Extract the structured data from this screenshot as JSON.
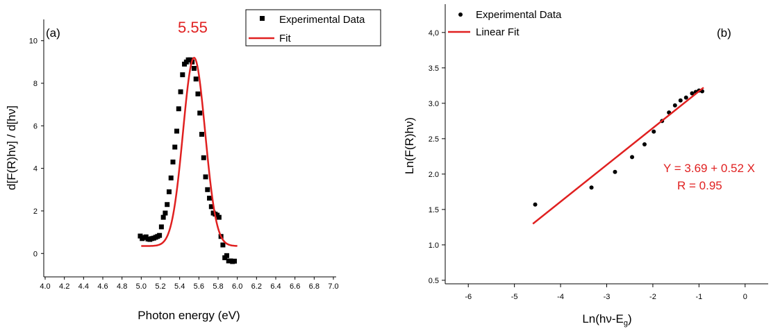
{
  "colors": {
    "fit": "#e02020",
    "data": "#000000",
    "axis": "#000000"
  },
  "chart_data": [
    {
      "type": "scatter",
      "panel_label": "(a)",
      "xlabel": "Photon energy (eV)",
      "ylabel": "d[F(R)hν] / d[hν]",
      "xlim": [
        4.0,
        7.0
      ],
      "ylim": [
        -1.1,
        11.0
      ],
      "x_ticks": [
        "4.0",
        "4.2",
        "4.4",
        "4.6",
        "4.8",
        "5.0",
        "5.2",
        "5.4",
        "5.6",
        "5.8",
        "6.0",
        "6.2",
        "6.4",
        "6.6",
        "6.8",
        "7.0"
      ],
      "y_ticks": [
        "0",
        "2",
        "4",
        "6",
        "8",
        "10"
      ],
      "annotation": "5.55",
      "legend": {
        "position": "top-right",
        "entries": [
          "Experimental Data",
          "Fit"
        ]
      },
      "series": [
        {
          "name": "Experimental Data",
          "kind": "scatter",
          "marker": "square",
          "x": [
            4.99,
            5.01,
            5.03,
            5.05,
            5.07,
            5.09,
            5.11,
            5.13,
            5.15,
            5.17,
            5.19,
            5.21,
            5.23,
            5.25,
            5.27,
            5.29,
            5.31,
            5.33,
            5.35,
            5.37,
            5.39,
            5.41,
            5.43,
            5.45,
            5.47,
            5.49,
            5.51,
            5.53,
            5.55,
            5.57,
            5.59,
            5.61,
            5.63,
            5.65,
            5.67,
            5.69,
            5.71,
            5.73,
            5.75,
            5.77,
            5.79,
            5.81,
            5.83,
            5.85,
            5.87,
            5.89,
            5.91,
            5.93,
            5.95,
            5.97
          ],
          "y": [
            0.82,
            0.7,
            0.75,
            0.78,
            0.68,
            0.66,
            0.7,
            0.72,
            0.76,
            0.8,
            0.85,
            1.25,
            1.7,
            1.9,
            2.3,
            2.9,
            3.55,
            4.3,
            5.0,
            5.75,
            6.8,
            7.6,
            8.4,
            8.9,
            9.0,
            9.1,
            9.1,
            9.0,
            8.7,
            8.2,
            7.5,
            6.6,
            5.6,
            4.5,
            3.6,
            3.0,
            2.6,
            2.2,
            1.9,
            1.85,
            1.8,
            1.7,
            0.8,
            0.4,
            -0.2,
            -0.1,
            -0.35,
            -0.35,
            -0.38,
            -0.36
          ]
        },
        {
          "name": "Fit",
          "kind": "gaussian",
          "y0": 0.35,
          "A": 8.85,
          "xc": 5.55,
          "sigma": 0.115,
          "x_range": [
            5.0,
            6.0
          ]
        }
      ]
    },
    {
      "type": "scatter",
      "panel_label": "(b)",
      "xlabel": "Ln(hν-E",
      "xlabel_sub": "g",
      "xlabel_end": ")",
      "ylabel": "Ln(F(R)hν)",
      "xlim": [
        -6.5,
        0.5
      ],
      "ylim": [
        0.45,
        4.4
      ],
      "x_ticks": [
        "-6",
        "-5",
        "-4",
        "-3",
        "-2",
        "-1",
        "0"
      ],
      "y_ticks": [
        "0.5",
        "1.0",
        "1.5",
        "2.0",
        "2.5",
        "3.0",
        "3.5",
        "4,0"
      ],
      "annotations": [
        "Y = 3.69 + 0.52 X",
        "R = 0.95"
      ],
      "legend": {
        "position": "top-left",
        "entries": [
          "Experimental Data",
          "Linear Fit"
        ]
      },
      "series": [
        {
          "name": "Experimental Data",
          "kind": "scatter",
          "marker": "circle",
          "x": [
            -4.55,
            -3.33,
            -2.82,
            -2.45,
            -2.18,
            -1.98,
            -1.8,
            -1.65,
            -1.52,
            -1.4,
            -1.28,
            -1.15,
            -1.07,
            -1.0,
            -0.93
          ],
          "y": [
            1.57,
            1.81,
            2.03,
            2.24,
            2.42,
            2.6,
            2.75,
            2.87,
            2.97,
            3.04,
            3.08,
            3.14,
            3.16,
            3.18,
            3.17
          ]
        },
        {
          "name": "Linear Fit",
          "kind": "line",
          "intercept": 3.69,
          "slope": 0.52,
          "x_range": [
            -4.6,
            -0.9
          ]
        }
      ]
    }
  ]
}
